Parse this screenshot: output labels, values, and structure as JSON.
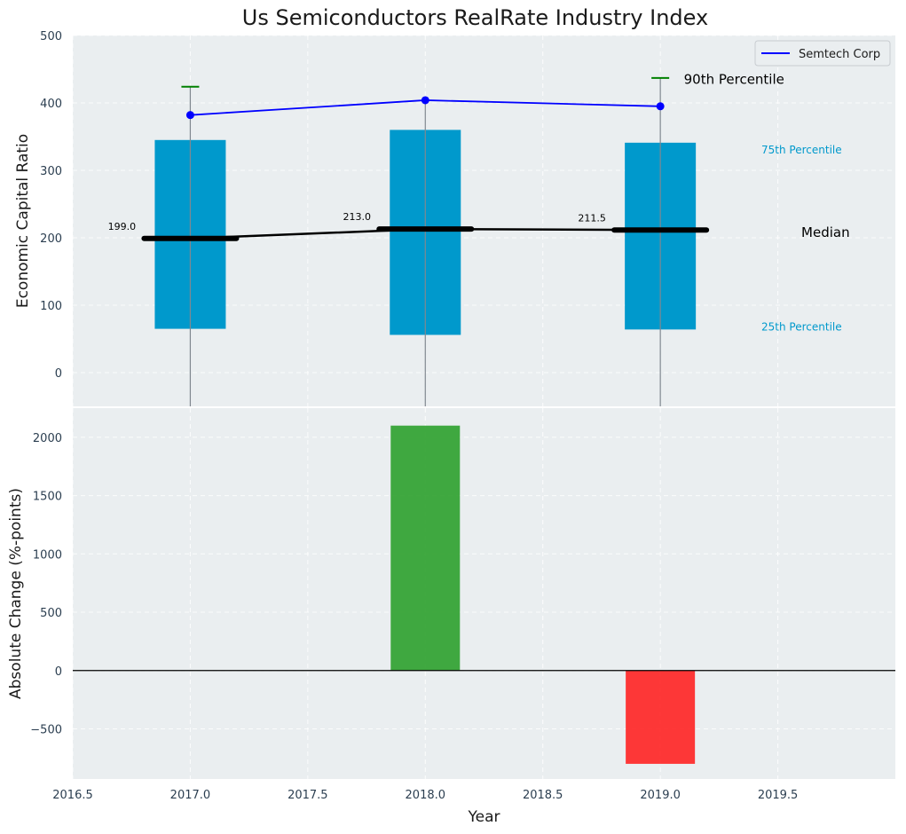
{
  "chart_data": [
    {
      "type": "box",
      "title": "Us Semiconductors RealRate Industry Index",
      "ylabel": "Economic Capital Ratio",
      "ylim": [
        -50,
        500
      ],
      "yticks": [
        0,
        100,
        200,
        300,
        400,
        500
      ],
      "xlim": [
        2016.5,
        2020.0
      ],
      "grid": true,
      "legend_position": "top-right",
      "x": [
        2017.0,
        2018.0,
        2019.0
      ],
      "p25": [
        65,
        56,
        64
      ],
      "p75": [
        345,
        360,
        341
      ],
      "median": [
        199.0,
        213.0,
        211.5
      ],
      "median_labels": [
        "199.0",
        "213.0",
        "211.5"
      ],
      "p90": [
        424,
        null,
        437
      ],
      "series": [
        {
          "name": "Semtech Corp",
          "values": [
            382,
            404,
            395
          ],
          "color": "#0000ff"
        }
      ],
      "annotations": {
        "p90": "90th Percentile",
        "p75": "75th Percentile",
        "median": "Median",
        "p25": "25th Percentile"
      },
      "colors": {
        "box": "#0099cc",
        "median_line": "#000000",
        "p90_tick": "#008000",
        "annotation_pct": "#0099cc"
      }
    },
    {
      "type": "bar",
      "xlabel": "Year",
      "ylabel": "Absolute Change (%-points)",
      "ylim": [
        -930,
        2250
      ],
      "yticks": [
        -500,
        0,
        500,
        1000,
        1500,
        2000
      ],
      "xticks": [
        2016.5,
        2017.0,
        2017.5,
        2018.0,
        2018.5,
        2019.0,
        2019.5
      ],
      "x": [
        2018.0,
        2019.0
      ],
      "values": [
        2100,
        -800
      ],
      "colors": {
        "positive": "#2ca02c",
        "negative": "#ff2222"
      }
    }
  ]
}
